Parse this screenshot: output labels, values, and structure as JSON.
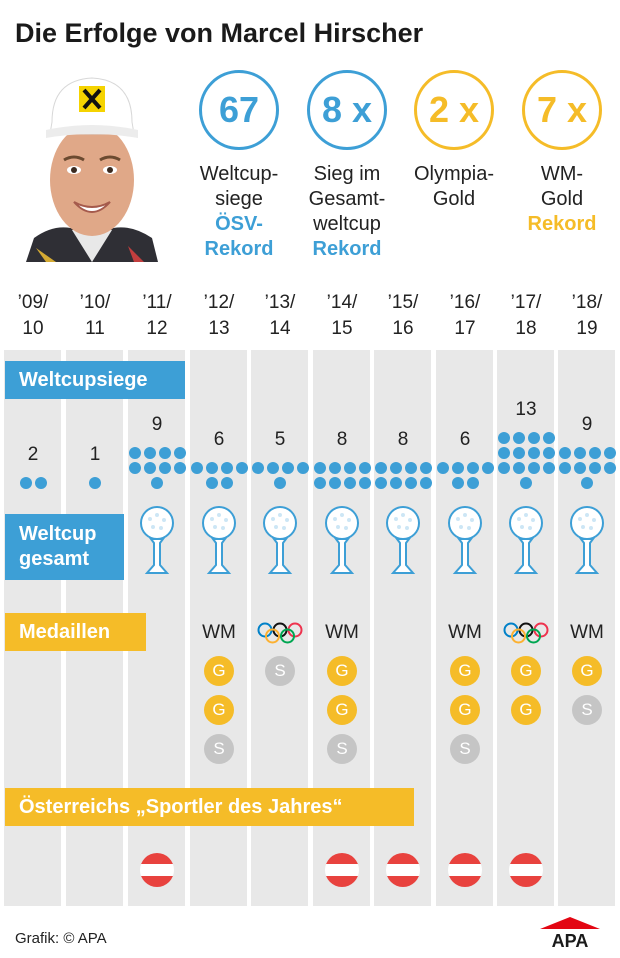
{
  "title": "Die Erfolge von Marcel Hirscher",
  "stats": [
    {
      "value": "67",
      "label_lines": [
        "Weltcup-",
        "siege"
      ],
      "note_lines": [
        "ÖSV-",
        "Rekord"
      ],
      "color": "#3d9fd6"
    },
    {
      "value": "8 x",
      "label_lines": [
        "Sieg im",
        "Gesamt-",
        "weltcup"
      ],
      "note_lines": [
        "Rekord"
      ],
      "color": "#3d9fd6"
    },
    {
      "value": "2 x",
      "label_lines": [
        "Olympia-",
        "Gold"
      ],
      "note_lines": [],
      "color": "#f5bc28"
    },
    {
      "value": "7 x",
      "label_lines": [
        "WM-",
        "Gold"
      ],
      "note_lines": [
        "Rekord"
      ],
      "color": "#f5bc28"
    }
  ],
  "sections": {
    "wins": "Weltcupsiege",
    "overall": [
      "Weltcup",
      "gesamt"
    ],
    "medals": "Medaillen",
    "athlete": "Österreichs „Sportler des Jahres“"
  },
  "chart_data": {
    "type": "table",
    "seasons": [
      {
        "line1": "’09/",
        "line2": "10",
        "wins": 2,
        "overall": false,
        "games": "",
        "medals": [],
        "athlete": false
      },
      {
        "line1": "’10/",
        "line2": "11",
        "wins": 1,
        "overall": false,
        "games": "",
        "medals": [],
        "athlete": false
      },
      {
        "line1": "’11/",
        "line2": "12",
        "wins": 9,
        "overall": true,
        "games": "",
        "medals": [],
        "athlete": true
      },
      {
        "line1": "’12/",
        "line2": "13",
        "wins": 6,
        "overall": true,
        "games": "WM",
        "medals": [
          "G",
          "G",
          "S"
        ],
        "athlete": false
      },
      {
        "line1": "’13/",
        "line2": "14",
        "wins": 5,
        "overall": true,
        "games": "olympic",
        "medals": [
          "S"
        ],
        "athlete": false
      },
      {
        "line1": "’14/",
        "line2": "15",
        "wins": 8,
        "overall": true,
        "games": "WM",
        "medals": [
          "G",
          "G",
          "S"
        ],
        "athlete": true
      },
      {
        "line1": "’15/",
        "line2": "16",
        "wins": 8,
        "overall": true,
        "games": "",
        "medals": [],
        "athlete": true
      },
      {
        "line1": "’16/",
        "line2": "17",
        "wins": 6,
        "overall": true,
        "games": "WM",
        "medals": [
          "G",
          "G",
          "S"
        ],
        "athlete": true
      },
      {
        "line1": "’17/",
        "line2": "18",
        "wins": 13,
        "overall": true,
        "games": "olympic",
        "medals": [
          "G",
          "G"
        ],
        "athlete": true
      },
      {
        "line1": "’18/",
        "line2": "19",
        "wins": 9,
        "overall": true,
        "games": "WM",
        "medals": [
          "G",
          "S"
        ],
        "athlete": false
      }
    ]
  },
  "colors": {
    "blue": "#3d9fd6",
    "gold": "#f5bc28",
    "silver": "#c5c5c5",
    "column": "#e8e8e8",
    "flag_red": "#e8423e"
  },
  "icons": {
    "globe": "crystal-globe-icon",
    "rings": "olympic-rings-icon",
    "flag": "austria-flag-icon",
    "logo": "apa-logo-icon"
  },
  "footer": "Grafik: © APA",
  "logo_text": "APA"
}
